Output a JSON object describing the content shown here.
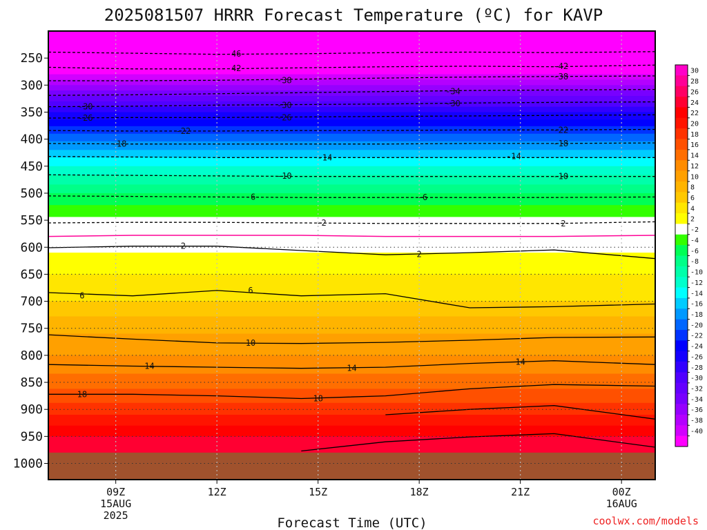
{
  "chart_data": {
    "type": "heatmap",
    "title": "2025081507 HRRR Forecast Temperature (ºC) for KAVP",
    "xlabel": "Forecast Time (UTC)",
    "ylabel": "",
    "credit": "coolwx.com/models",
    "x_axis": {
      "unit": "hours since 2025-08-15 07Z (forecast hour)",
      "range": [
        0,
        18
      ],
      "ticks": [
        {
          "hour": 2,
          "lines": [
            "09Z",
            "15AUG",
            "2025"
          ]
        },
        {
          "hour": 5,
          "lines": [
            "12Z"
          ]
        },
        {
          "hour": 8,
          "lines": [
            "15Z"
          ]
        },
        {
          "hour": 11,
          "lines": [
            "18Z"
          ]
        },
        {
          "hour": 14,
          "lines": [
            "21Z"
          ]
        },
        {
          "hour": 17,
          "lines": [
            "00Z",
            "16AUG"
          ]
        }
      ]
    },
    "y_axis": {
      "unit": "hPa",
      "range_top": 200,
      "range_bottom": 1030,
      "scale": "linear",
      "inverted": true,
      "ticks": [
        250,
        300,
        350,
        400,
        450,
        500,
        550,
        600,
        650,
        700,
        750,
        800,
        850,
        900,
        950,
        1000
      ],
      "gridlines_hpa": [
        600,
        650,
        700,
        750,
        800,
        850,
        900,
        950,
        1000
      ]
    },
    "surface_hpa": 980,
    "colorbar": {
      "labels": [
        30,
        28,
        26,
        24,
        22,
        20,
        18,
        16,
        14,
        12,
        10,
        8,
        6,
        4,
        2,
        -2,
        -4,
        -6,
        -8,
        -10,
        -12,
        -14,
        -16,
        -18,
        -20,
        -22,
        -24,
        -26,
        -28,
        -30,
        -32,
        -34,
        -36,
        -38,
        -40
      ],
      "colors": [
        "#ff00c8",
        "#ff0096",
        "#ff0064",
        "#ff0032",
        "#ff0000",
        "#ff1400",
        "#ff3200",
        "#ff5000",
        "#ff6e00",
        "#ff8c00",
        "#ffa000",
        "#ffb400",
        "#ffc800",
        "#ffe600",
        "#ffff00",
        "#ffffff",
        "#33ff00",
        "#00ff55",
        "#00ff88",
        "#00ffaa",
        "#00ffcc",
        "#00ffff",
        "#00ccff",
        "#0099ff",
        "#0066ff",
        "#0033ff",
        "#0000ff",
        "#1400ff",
        "#3200ff",
        "#5000ff",
        "#6400ff",
        "#7800ff",
        "#9600ff",
        "#b400ff",
        "#d200ff",
        "#ff00ff"
      ]
    },
    "temperature_profile": {
      "pressure_hpa": [
        980,
        950,
        900,
        850,
        800,
        750,
        700,
        650,
        600,
        575,
        550,
        500,
        450,
        400,
        350,
        300,
        250,
        200
      ],
      "temp_c": [
        26,
        24,
        19,
        15,
        12,
        9.5,
        6,
        4,
        1.5,
        0,
        -1.5,
        -6,
        -12,
        -18.5,
        -26,
        -36,
        -46,
        -56
      ]
    },
    "contours": [
      {
        "level": -46,
        "dashed": true,
        "color": "#000000",
        "p_hpa": [
          239,
          241,
          243,
          242,
          240,
          239,
          240,
          238
        ]
      },
      {
        "level": -42,
        "dashed": true,
        "color": "#000000",
        "p_hpa": [
          267,
          270,
          270,
          268,
          266,
          265,
          266,
          263
        ]
      },
      {
        "level": -38,
        "dashed": true,
        "color": "#000000",
        "p_hpa": [
          292,
          292,
          291,
          289,
          287,
          285,
          284,
          283
        ]
      },
      {
        "level": -34,
        "dashed": true,
        "color": "#000000",
        "p_hpa": [
          319,
          318,
          316,
          314,
          312,
          310,
          309,
          308
        ]
      },
      {
        "level": -30,
        "dashed": true,
        "color": "#000000",
        "p_hpa": [
          340,
          339,
          337,
          336,
          335,
          333,
          332,
          331
        ]
      },
      {
        "level": -26,
        "dashed": true,
        "color": "#000000",
        "p_hpa": [
          361,
          360,
          360,
          359,
          358,
          357,
          356,
          355
        ]
      },
      {
        "level": -22,
        "dashed": true,
        "color": "#000000",
        "p_hpa": [
          384,
          385,
          385,
          384,
          384,
          383,
          383,
          382
        ]
      },
      {
        "level": -18,
        "dashed": true,
        "color": "#000000",
        "p_hpa": [
          408,
          409,
          409,
          409,
          409,
          408,
          408,
          407
        ]
      },
      {
        "level": -14,
        "dashed": true,
        "color": "#000000",
        "p_hpa": [
          432,
          433,
          434,
          434,
          434,
          434,
          434,
          434
        ]
      },
      {
        "level": -10,
        "dashed": true,
        "color": "#000000",
        "p_hpa": [
          466,
          467,
          468,
          469,
          469,
          469,
          469,
          469
        ]
      },
      {
        "level": -6,
        "dashed": true,
        "color": "#000000",
        "p_hpa": [
          505,
          506,
          507,
          508,
          508,
          508,
          508,
          507
        ]
      },
      {
        "level": -2,
        "dashed": true,
        "color": "#000000",
        "p_hpa": [
          555,
          554,
          554,
          555,
          556,
          556,
          556,
          553
        ]
      },
      {
        "level": 0,
        "dashed": false,
        "color": "#ff0096",
        "p_hpa": [
          580,
          578,
          578,
          578,
          580,
          580,
          580,
          578
        ]
      },
      {
        "level": 2,
        "dashed": false,
        "color": "#000000",
        "p_hpa": [
          601,
          598,
          598,
          606,
          614,
          610,
          605,
          621
        ]
      },
      {
        "level": 6,
        "dashed": false,
        "color": "#000000",
        "p_hpa": [
          684,
          690,
          680,
          690,
          686,
          712,
          710,
          705
        ]
      },
      {
        "level": 10,
        "dashed": false,
        "color": "#000000",
        "p_hpa": [
          762,
          770,
          777,
          778,
          776,
          772,
          767,
          766
        ]
      },
      {
        "level": 14,
        "dashed": false,
        "color": "#000000",
        "p_hpa": [
          817,
          820,
          822,
          824,
          822,
          815,
          810,
          817
        ]
      },
      {
        "level": 18,
        "dashed": false,
        "color": "#000000",
        "p_hpa": [
          872,
          872,
          875,
          880,
          875,
          862,
          854,
          857
        ]
      },
      {
        "level": 22,
        "dashed": false,
        "color": "#000000",
        "p_hpa": [
          null,
          null,
          null,
          null,
          910,
          900,
          893,
          918
        ]
      },
      {
        "level": 24,
        "dashed": false,
        "color": "#000000",
        "p_hpa": [
          null,
          null,
          null,
          977,
          960,
          951,
          945,
          970
        ]
      }
    ],
    "contour_x_hours": [
      0,
      2.5,
      5,
      7.5,
      10,
      12.5,
      15,
      18
    ],
    "contour_labels": [
      {
        "text": "-46",
        "hour": 5.5,
        "p_hpa": 242
      },
      {
        "text": "-42",
        "hour": 5.5,
        "p_hpa": 269
      },
      {
        "text": "-42",
        "hour": 15.2,
        "p_hpa": 265
      },
      {
        "text": "-38",
        "hour": 7,
        "p_hpa": 291
      },
      {
        "text": "-38",
        "hour": 15.2,
        "p_hpa": 284
      },
      {
        "text": "-34",
        "hour": 12,
        "p_hpa": 312
      },
      {
        "text": "-30",
        "hour": 1.1,
        "p_hpa": 340
      },
      {
        "text": "-30",
        "hour": 7,
        "p_hpa": 337
      },
      {
        "text": "-30",
        "hour": 12,
        "p_hpa": 334
      },
      {
        "text": "-26",
        "hour": 1.1,
        "p_hpa": 361
      },
      {
        "text": "-26",
        "hour": 7,
        "p_hpa": 360
      },
      {
        "text": "-22",
        "hour": 4,
        "p_hpa": 385
      },
      {
        "text": "-22",
        "hour": 15.2,
        "p_hpa": 383
      },
      {
        "text": "-18",
        "hour": 2.1,
        "p_hpa": 409
      },
      {
        "text": "-18",
        "hour": 15.2,
        "p_hpa": 408
      },
      {
        "text": "-14",
        "hour": 8.2,
        "p_hpa": 434
      },
      {
        "text": "-14",
        "hour": 13.8,
        "p_hpa": 432
      },
      {
        "text": "-10",
        "hour": 7,
        "p_hpa": 468
      },
      {
        "text": "-10",
        "hour": 15.2,
        "p_hpa": 469
      },
      {
        "text": "-6",
        "hour": 6,
        "p_hpa": 507
      },
      {
        "text": "-6",
        "hour": 11.1,
        "p_hpa": 508
      },
      {
        "text": "-2",
        "hour": 8.1,
        "p_hpa": 555
      },
      {
        "text": "-2",
        "hour": 15.2,
        "p_hpa": 556
      },
      {
        "text": "2",
        "hour": 4,
        "p_hpa": 598
      },
      {
        "text": "2",
        "hour": 11,
        "p_hpa": 613
      },
      {
        "text": "6",
        "hour": 1,
        "p_hpa": 690
      },
      {
        "text": "6",
        "hour": 6,
        "p_hpa": 680
      },
      {
        "text": "10",
        "hour": 6,
        "p_hpa": 777
      },
      {
        "text": "14",
        "hour": 3,
        "p_hpa": 820
      },
      {
        "text": "14",
        "hour": 9,
        "p_hpa": 824
      },
      {
        "text": "14",
        "hour": 14,
        "p_hpa": 812
      },
      {
        "text": "18",
        "hour": 1,
        "p_hpa": 872
      },
      {
        "text": "18",
        "hour": 8,
        "p_hpa": 880
      }
    ]
  }
}
